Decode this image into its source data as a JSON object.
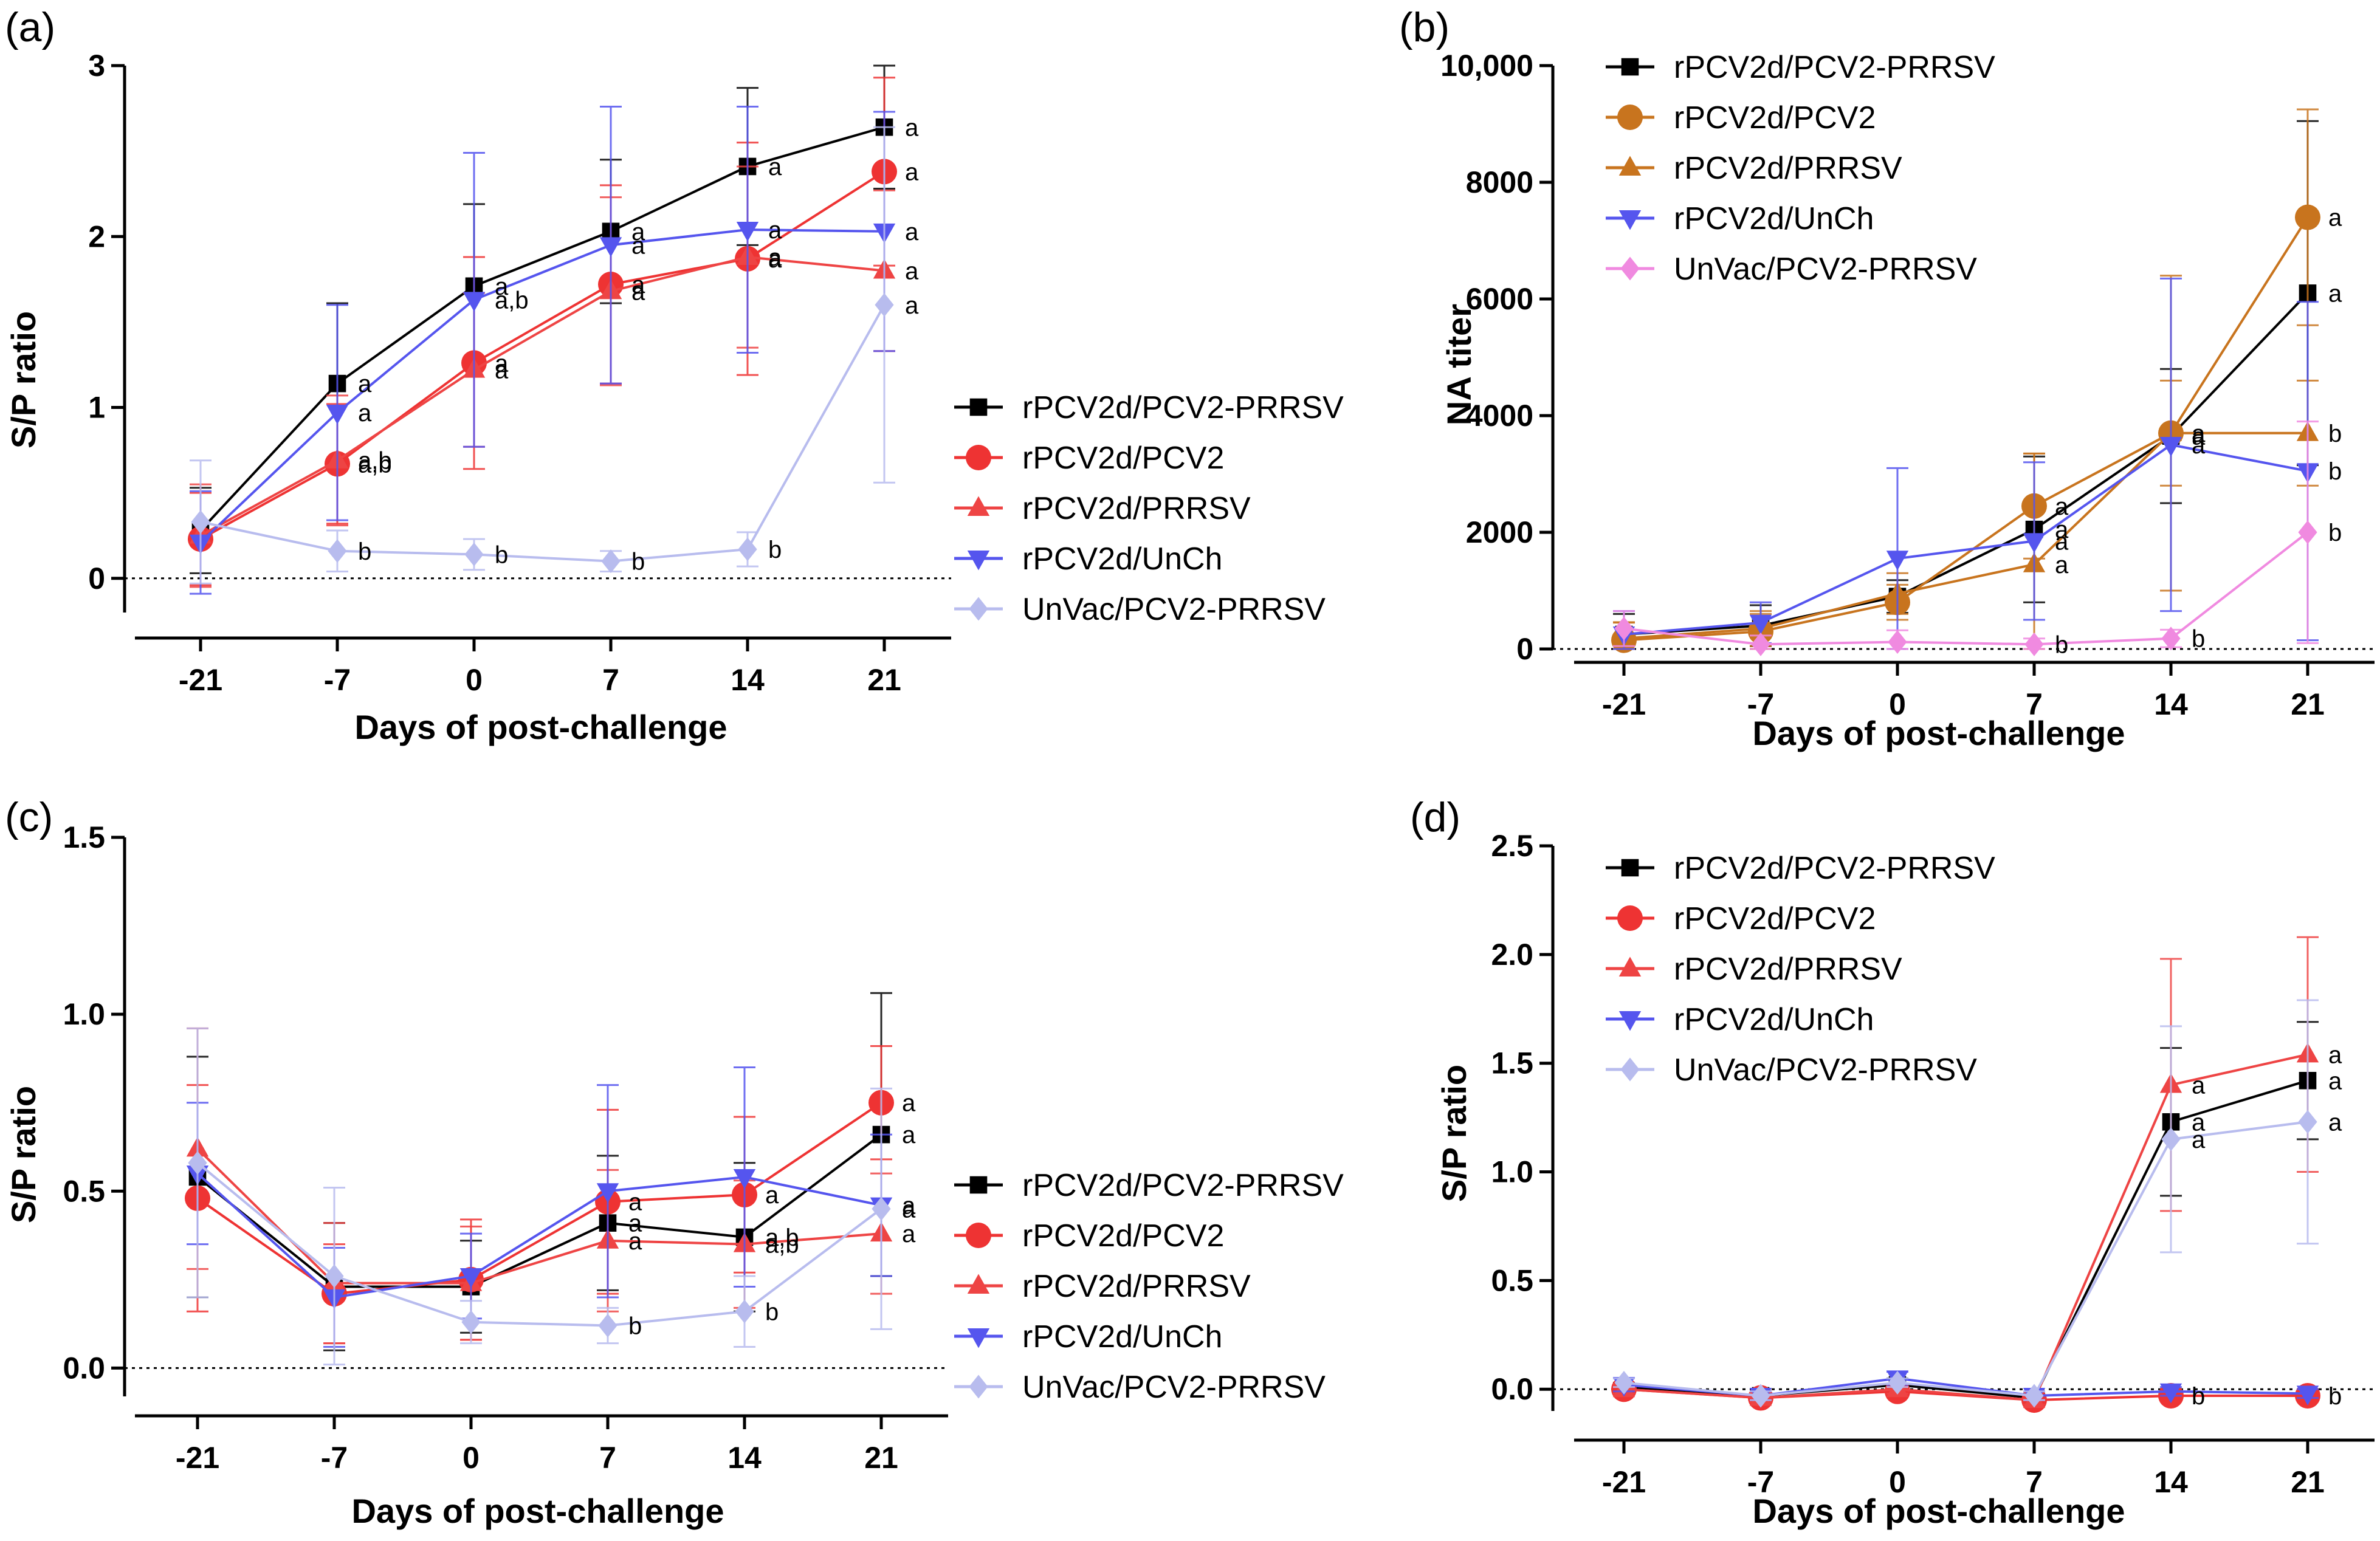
{
  "chart_data": [
    {
      "panel_label": "(a)",
      "type": "line",
      "xlabel": "Days of post-challenge",
      "ylabel": "S/P ratio",
      "x": [
        -21,
        -7,
        0,
        7,
        14,
        21
      ],
      "x_tick_labels": [
        "-21",
        "-7",
        "0",
        "7",
        "14",
        "21"
      ],
      "ylim": [
        -0.2,
        3
      ],
      "y_ticks": [
        0,
        1,
        2,
        3
      ],
      "y_tick_labels": [
        "0",
        "1",
        "2",
        "3"
      ],
      "zero_line": true,
      "legend_position": "right-middle",
      "series": [
        {
          "name": "rPCV2d/PCV2-PRRSV",
          "color": "#000000",
          "marker": "square",
          "values": [
            0.28,
            1.14,
            1.71,
            2.03,
            2.41,
            2.64
          ],
          "errors": [
            0.25,
            0.47,
            0.48,
            0.42,
            0.46,
            0.36
          ],
          "annotations": [
            "",
            "a",
            "a",
            "a",
            "a",
            "a"
          ]
        },
        {
          "name": "rPCV2d/PCV2",
          "color": "#ee3333",
          "marker": "circle",
          "values": [
            0.23,
            0.67,
            1.26,
            1.72,
            1.87,
            2.38
          ],
          "errors": [
            0.27,
            0.35,
            0.62,
            0.58,
            0.68,
            0.55
          ],
          "annotations": [
            "",
            "a,b",
            "a",
            "a",
            "a",
            "a"
          ]
        },
        {
          "name": "rPCV2d/PRRSV",
          "color": "#ee4444",
          "marker": "triangle-up",
          "values": [
            0.25,
            0.69,
            1.22,
            1.68,
            1.88,
            1.8
          ],
          "errors": [
            0.3,
            0.38,
            0.45,
            0.55,
            0.53,
            0.47
          ],
          "annotations": [
            "",
            "a,b",
            "a",
            "a",
            "a",
            "a"
          ]
        },
        {
          "name": "rPCV2d/UnCh",
          "color": "#5555ee",
          "marker": "triangle-down",
          "values": [
            0.21,
            0.97,
            1.63,
            1.95,
            2.04,
            2.03
          ],
          "errors": [
            0.3,
            0.63,
            0.86,
            0.81,
            0.72,
            0.7
          ],
          "annotations": [
            "",
            "a",
            "a,b",
            "a",
            "a",
            "a"
          ]
        },
        {
          "name": "UnVac/PCV2-PRRSV",
          "color": "#b8bcee",
          "marker": "diamond",
          "values": [
            0.33,
            0.16,
            0.14,
            0.1,
            0.17,
            1.6
          ],
          "errors": [
            0.36,
            0.12,
            0.09,
            0.06,
            0.1,
            1.04
          ],
          "annotations": [
            "",
            "b",
            "b",
            "b",
            "b",
            "a"
          ]
        }
      ]
    },
    {
      "panel_label": "(b)",
      "type": "line",
      "xlabel": "Days of post-challenge",
      "ylabel": "NA titer",
      "x": [
        -21,
        -7,
        0,
        7,
        14,
        21
      ],
      "x_tick_labels": [
        "-21",
        "-7",
        "0",
        "7",
        "14",
        "21"
      ],
      "ylim": [
        0,
        10000
      ],
      "y_ticks": [
        0,
        2000,
        4000,
        6000,
        8000,
        10000
      ],
      "y_tick_labels": [
        "0",
        "2000",
        "4000",
        "6000",
        "8000",
        "10,000"
      ],
      "zero_line": true,
      "legend_position": "top-left",
      "series": [
        {
          "name": "rPCV2d/PCV2-PRRSV",
          "color": "#000000",
          "marker": "square",
          "values": [
            250,
            400,
            900,
            2050,
            3650,
            6100
          ],
          "errors": [
            350,
            350,
            280,
            1250,
            1150,
            2950
          ],
          "annotations": [
            "",
            "",
            "",
            "a",
            "a",
            "a"
          ]
        },
        {
          "name": "rPCV2d/PCV2",
          "color": "#c8741e",
          "marker": "circle",
          "values": [
            150,
            300,
            800,
            2450,
            3700,
            7400
          ],
          "errors": [
            300,
            300,
            300,
            900,
            2700,
            1850
          ],
          "annotations": [
            "",
            "",
            "",
            "a",
            "a",
            "a"
          ]
        },
        {
          "name": "rPCV2d/PRRSV",
          "color": "#c8741e",
          "marker": "triangle-up",
          "values": [
            180,
            350,
            950,
            1450,
            3700,
            3700
          ],
          "errors": [
            280,
            300,
            350,
            1900,
            900,
            900
          ],
          "annotations": [
            "",
            "",
            "",
            "a",
            "a",
            "b"
          ]
        },
        {
          "name": "rPCV2d/UnCh",
          "color": "#5555ee",
          "marker": "triangle-down",
          "values": [
            250,
            450,
            1550,
            1850,
            3500,
            3050
          ],
          "errors": [
            400,
            350,
            1550,
            1350,
            2850,
            2900
          ],
          "annotations": [
            "",
            "",
            "",
            "a",
            "a",
            "b"
          ]
        },
        {
          "name": "UnVac/PCV2-PRRSV",
          "color": "#f08ae0",
          "marker": "diamond",
          "values": [
            350,
            80,
            120,
            80,
            180,
            2000
          ],
          "errors": [
            300,
            150,
            200,
            100,
            150,
            1900
          ],
          "annotations": [
            "",
            "",
            "",
            "b",
            "b",
            "b"
          ]
        }
      ]
    },
    {
      "panel_label": "(c)",
      "type": "line",
      "xlabel": "Days of post-challenge",
      "ylabel": "S/P ratio",
      "x": [
        -21,
        -7,
        0,
        7,
        14,
        21
      ],
      "x_tick_labels": [
        "-21",
        "-7",
        "0",
        "7",
        "14",
        "21"
      ],
      "ylim": [
        -0.08,
        1.5
      ],
      "y_ticks": [
        0,
        0.5,
        1,
        1.5
      ],
      "y_tick_labels": [
        "0.0",
        "0.5",
        "1.0",
        "1.5"
      ],
      "zero_line": true,
      "legend_position": "right-lower",
      "series": [
        {
          "name": "rPCV2d/PCV2-PRRSV",
          "color": "#000000",
          "marker": "square",
          "values": [
            0.54,
            0.23,
            0.23,
            0.41,
            0.37,
            0.66
          ],
          "errors": [
            0.34,
            0.18,
            0.13,
            0.19,
            0.21,
            0.4
          ],
          "annotations": [
            "",
            "",
            "",
            "a",
            "a,b",
            "a"
          ]
        },
        {
          "name": "rPCV2d/PCV2",
          "color": "#ee3333",
          "marker": "circle",
          "values": [
            0.48,
            0.21,
            0.25,
            0.47,
            0.49,
            0.75
          ],
          "errors": [
            0.32,
            0.14,
            0.17,
            0.26,
            0.22,
            0.16
          ],
          "annotations": [
            "",
            "",
            "",
            "a",
            "a",
            "a"
          ]
        },
        {
          "name": "rPCV2d/PRRSV",
          "color": "#ee4444",
          "marker": "triangle-up",
          "values": [
            0.62,
            0.24,
            0.24,
            0.36,
            0.35,
            0.38
          ],
          "errors": [
            0.34,
            0.17,
            0.16,
            0.2,
            0.18,
            0.17
          ],
          "annotations": [
            "",
            "",
            "",
            "a",
            "a,b",
            "a"
          ]
        },
        {
          "name": "rPCV2d/UnCh",
          "color": "#5555ee",
          "marker": "triangle-down",
          "values": [
            0.55,
            0.2,
            0.26,
            0.5,
            0.54,
            0.46
          ],
          "errors": [
            0.2,
            0.14,
            0.12,
            0.3,
            0.31,
            0.2
          ],
          "annotations": [
            "",
            "",
            "",
            "",
            "",
            "a"
          ]
        },
        {
          "name": "UnVac/PCV2-PRRSV",
          "color": "#b8bcee",
          "marker": "diamond",
          "values": [
            0.58,
            0.26,
            0.13,
            0.12,
            0.16,
            0.45
          ],
          "errors": [
            0.38,
            0.25,
            0.06,
            0.05,
            0.1,
            0.34
          ],
          "annotations": [
            "",
            "",
            "",
            "b",
            "b",
            "a"
          ]
        }
      ]
    },
    {
      "panel_label": "(d)",
      "type": "line",
      "xlabel": "Days of post-challenge",
      "ylabel": "S/P ratio",
      "x": [
        -21,
        -7,
        0,
        7,
        14,
        21
      ],
      "x_tick_labels": [
        "-21",
        "-7",
        "0",
        "7",
        "14",
        "21"
      ],
      "ylim": [
        -0.1,
        2.5
      ],
      "y_ticks": [
        0,
        0.5,
        1,
        1.5,
        2,
        2.5
      ],
      "y_tick_labels": [
        "0.0",
        "0.5",
        "1.0",
        "1.5",
        "2.0",
        "2.5"
      ],
      "zero_line": true,
      "legend_position": "top-left",
      "series": [
        {
          "name": "rPCV2d/PCV2-PRRSV",
          "color": "#000000",
          "marker": "square",
          "values": [
            0.01,
            -0.03,
            0.02,
            -0.04,
            1.23,
            1.42
          ],
          "errors": [
            0.02,
            0.02,
            0.03,
            0.02,
            0.34,
            0.27
          ],
          "annotations": [
            "",
            "",
            "",
            "",
            "a",
            "a"
          ]
        },
        {
          "name": "rPCV2d/PCV2",
          "color": "#ee3333",
          "marker": "circle",
          "values": [
            0.0,
            -0.04,
            -0.01,
            -0.05,
            -0.03,
            -0.03
          ],
          "errors": [
            0.02,
            0.02,
            0.02,
            0.02,
            0.02,
            0.02
          ],
          "annotations": [
            "",
            "",
            "",
            "",
            "b",
            "b"
          ]
        },
        {
          "name": "rPCV2d/PRRSV",
          "color": "#ee4444",
          "marker": "triangle-up",
          "values": [
            0.0,
            -0.04,
            0.0,
            -0.05,
            1.4,
            1.54
          ],
          "errors": [
            0.02,
            0.02,
            0.02,
            0.02,
            0.58,
            0.54
          ],
          "annotations": [
            "",
            "",
            "",
            "",
            "a",
            "a"
          ]
        },
        {
          "name": "rPCV2d/UnCh",
          "color": "#5555ee",
          "marker": "triangle-down",
          "values": [
            0.02,
            -0.03,
            0.05,
            -0.03,
            -0.01,
            -0.02
          ],
          "errors": [
            0.03,
            0.02,
            0.03,
            0.02,
            0.02,
            0.02
          ],
          "annotations": [
            "",
            "",
            "",
            "",
            "",
            ""
          ]
        },
        {
          "name": "UnVac/PCV2-PRRSV",
          "color": "#b8bcee",
          "marker": "diamond",
          "values": [
            0.03,
            -0.03,
            0.03,
            -0.03,
            1.15,
            1.23
          ],
          "errors": [
            0.02,
            0.02,
            0.02,
            0.02,
            0.52,
            0.56
          ],
          "annotations": [
            "",
            "",
            "",
            "",
            "a",
            "a"
          ]
        }
      ]
    }
  ]
}
